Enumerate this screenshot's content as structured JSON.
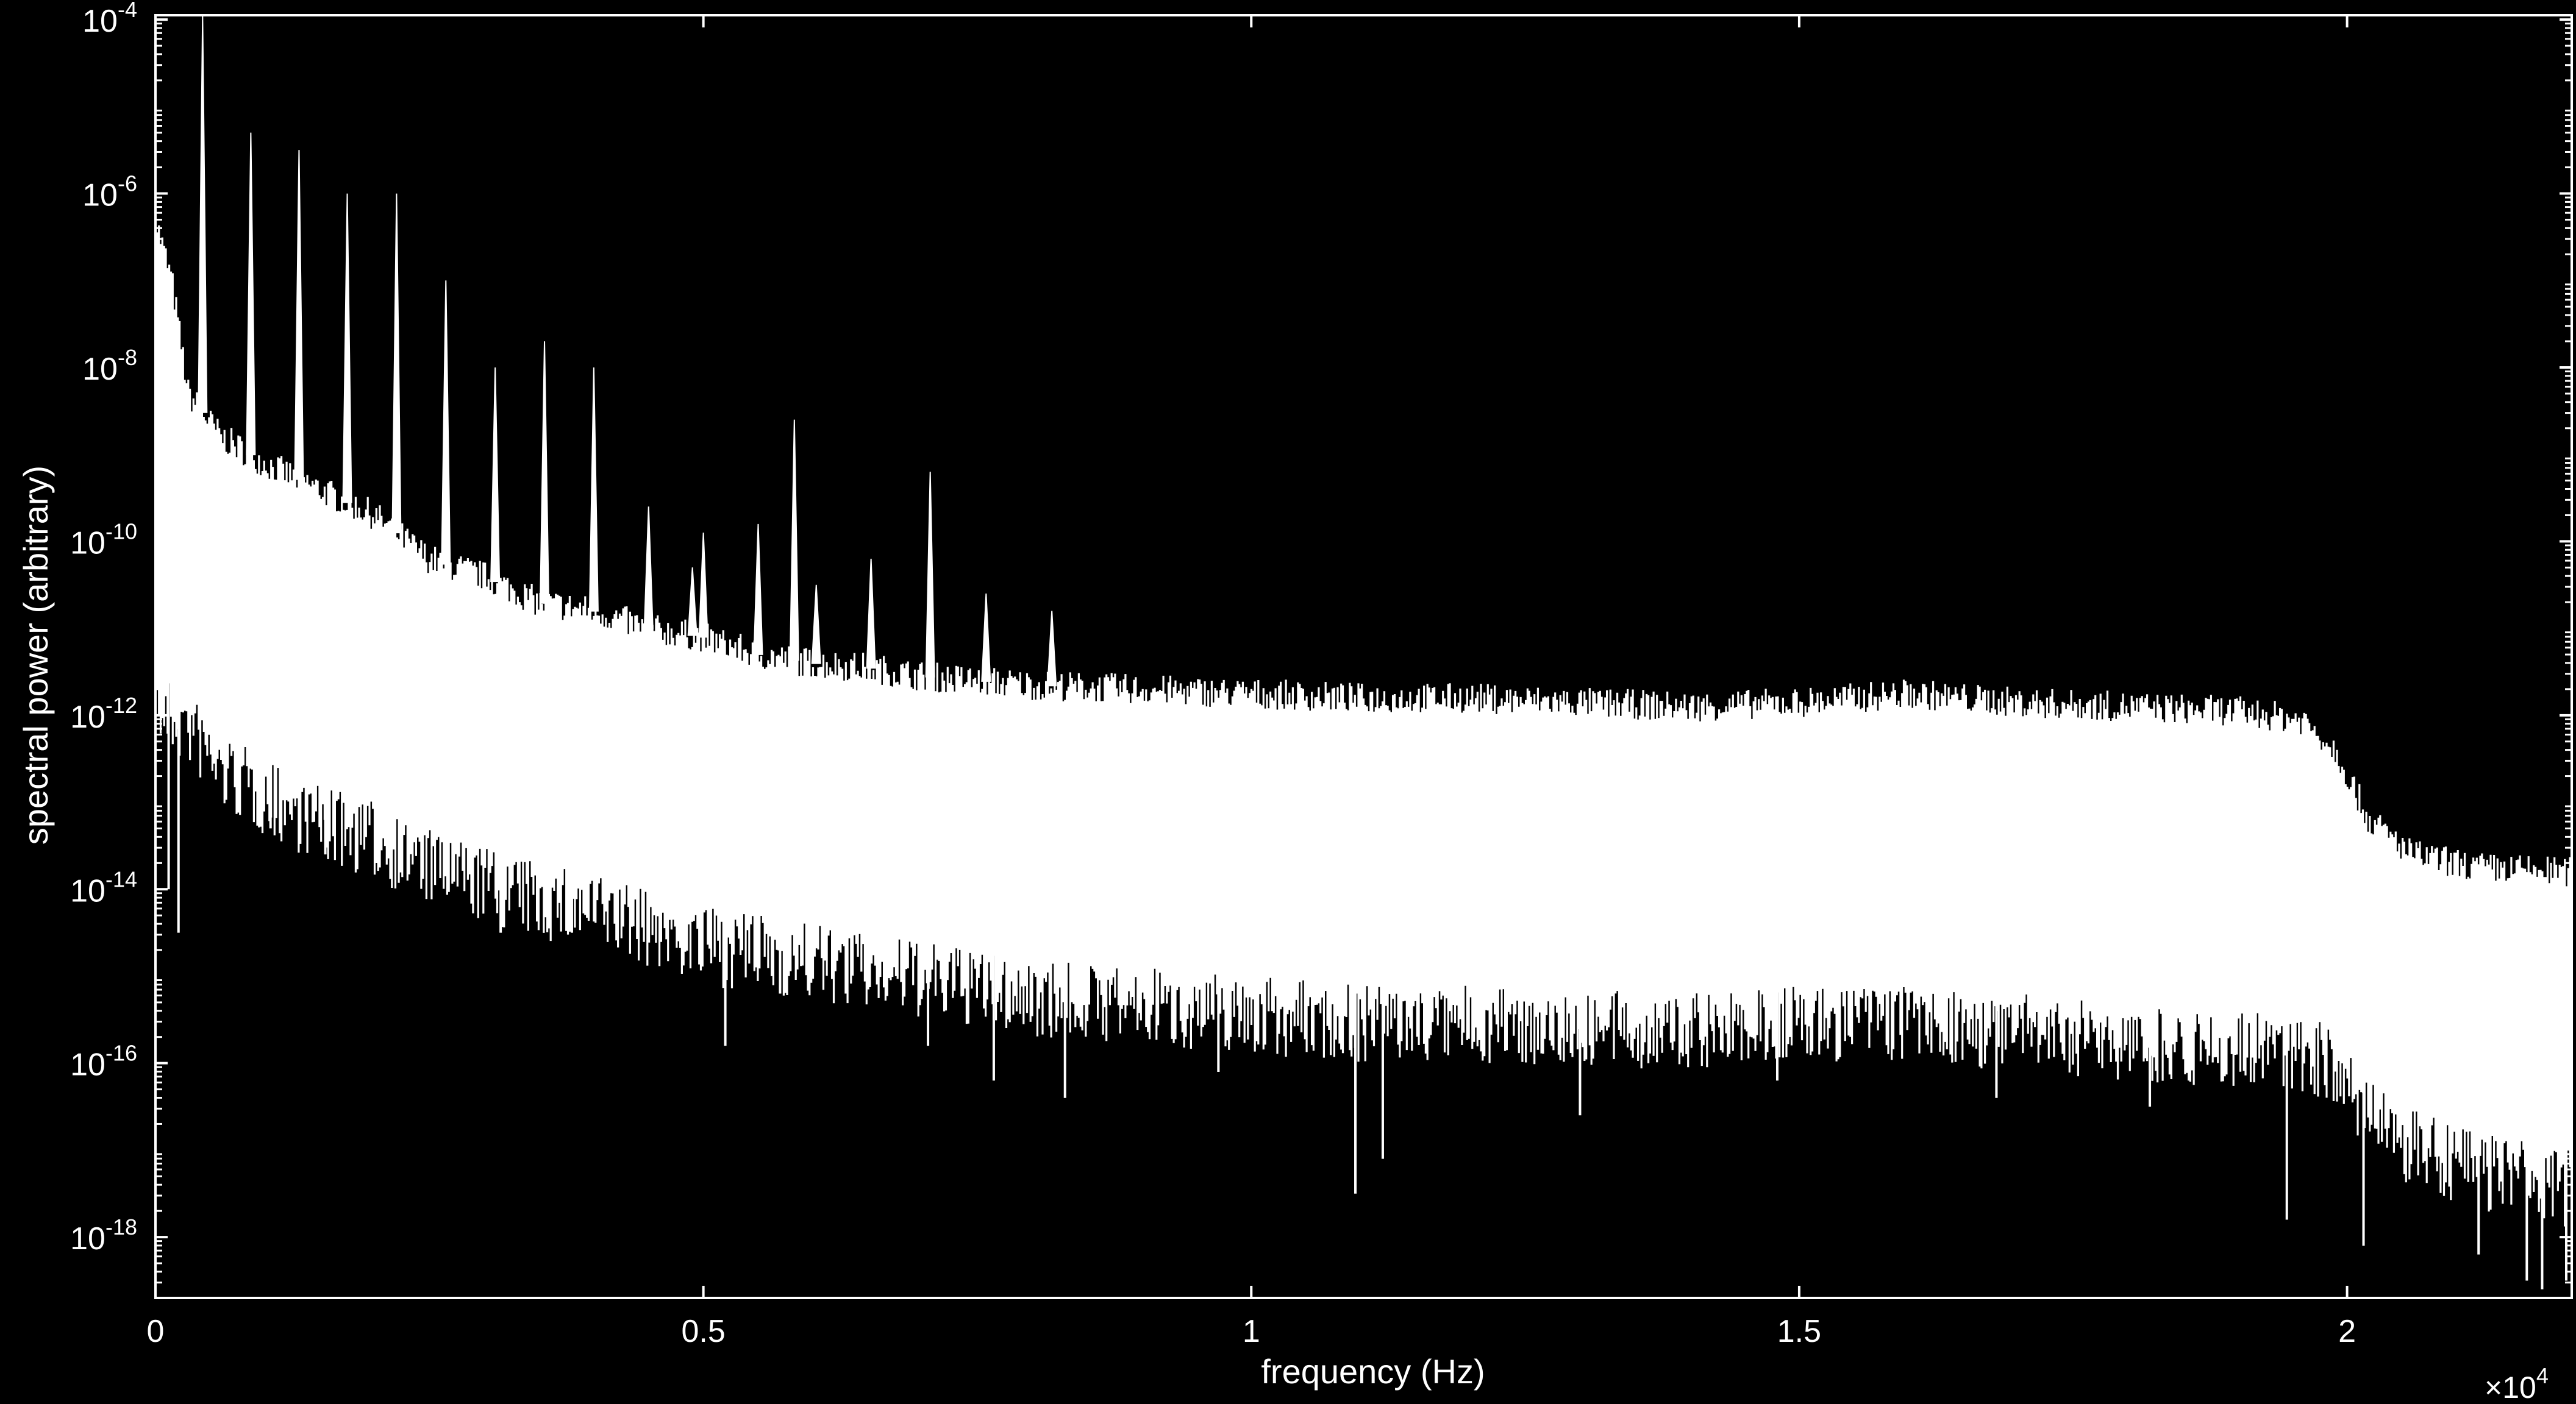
{
  "chart_data": {
    "type": "line",
    "title": "",
    "xlabel": "frequency (Hz)",
    "ylabel": "spectral power (arbitrary)",
    "x_multiplier_label": "×10",
    "x_multiplier_exp": "4",
    "xlim": [
      0,
      22050
    ],
    "ylim_log10": [
      -18.7,
      -3.95
    ],
    "y_scale": "log",
    "grid": false,
    "background_color": "#000000",
    "line_color": "#ffffff",
    "x_ticks": [
      {
        "value": 0,
        "label": "0"
      },
      {
        "value": 5000,
        "label": "0.5"
      },
      {
        "value": 10000,
        "label": "1"
      },
      {
        "value": 15000,
        "label": "1.5"
      },
      {
        "value": 20000,
        "label": "2"
      }
    ],
    "y_ticks": [
      {
        "exp": -4,
        "base": "10",
        "sup": "-4"
      },
      {
        "exp": -6,
        "base": "10",
        "sup": "-6"
      },
      {
        "exp": -8,
        "base": "10",
        "sup": "-8"
      },
      {
        "exp": -10,
        "base": "10",
        "sup": "-10"
      },
      {
        "exp": -12,
        "base": "10",
        "sup": "-12"
      },
      {
        "exp": -14,
        "base": "10",
        "sup": "-14"
      },
      {
        "exp": -16,
        "base": "10",
        "sup": "-16"
      },
      {
        "exp": -18,
        "base": "10",
        "sup": "-18"
      }
    ],
    "envelope": {
      "upper": [
        [
          0,
          -6.3
        ],
        [
          150,
          -7.0
        ],
        [
          300,
          -8.3
        ],
        [
          600,
          -8.8
        ],
        [
          1000,
          -9.1
        ],
        [
          1500,
          -9.4
        ],
        [
          2000,
          -9.7
        ],
        [
          2500,
          -10.2
        ],
        [
          3000,
          -10.4
        ],
        [
          3500,
          -10.7
        ],
        [
          4000,
          -10.8
        ],
        [
          4500,
          -11.0
        ],
        [
          5000,
          -11.1
        ],
        [
          5500,
          -11.3
        ],
        [
          6000,
          -11.4
        ],
        [
          6500,
          -11.45
        ],
        [
          7000,
          -11.55
        ],
        [
          7500,
          -11.6
        ],
        [
          8000,
          -11.65
        ],
        [
          9000,
          -11.7
        ],
        [
          10000,
          -11.75
        ],
        [
          11000,
          -11.8
        ],
        [
          12000,
          -11.8
        ],
        [
          13000,
          -11.85
        ],
        [
          14000,
          -11.9
        ],
        [
          15000,
          -11.85
        ],
        [
          16000,
          -11.75
        ],
        [
          17000,
          -11.85
        ],
        [
          18000,
          -11.9
        ],
        [
          19000,
          -11.95
        ],
        [
          19600,
          -12.05
        ],
        [
          19900,
          -12.4
        ],
        [
          20200,
          -13.2
        ],
        [
          20600,
          -13.6
        ],
        [
          21200,
          -13.75
        ],
        [
          22050,
          -13.8
        ]
      ],
      "lower": [
        [
          0,
          -11.5
        ],
        [
          300,
          -11.7
        ],
        [
          600,
          -12.2
        ],
        [
          1000,
          -12.5
        ],
        [
          1500,
          -12.8
        ],
        [
          2000,
          -13.0
        ],
        [
          2500,
          -13.3
        ],
        [
          3000,
          -13.5
        ],
        [
          3500,
          -13.7
        ],
        [
          4000,
          -13.8
        ],
        [
          4500,
          -14.0
        ],
        [
          5000,
          -14.2
        ],
        [
          6000,
          -14.4
        ],
        [
          7000,
          -14.6
        ],
        [
          8000,
          -14.8
        ],
        [
          9000,
          -14.9
        ],
        [
          10000,
          -15.0
        ],
        [
          11000,
          -15.1
        ],
        [
          12000,
          -15.1
        ],
        [
          13000,
          -15.15
        ],
        [
          14000,
          -15.2
        ],
        [
          15000,
          -15.1
        ],
        [
          16000,
          -15.1
        ],
        [
          17000,
          -15.2
        ],
        [
          18000,
          -15.3
        ],
        [
          19000,
          -15.4
        ],
        [
          19800,
          -15.5
        ],
        [
          20100,
          -16.0
        ],
        [
          20500,
          -16.5
        ],
        [
          21200,
          -16.8
        ],
        [
          22050,
          -17.0
        ]
      ]
    },
    "peaks": [
      {
        "x": 430,
        "y": -3.95
      },
      {
        "x": 870,
        "y": -5.3
      },
      {
        "x": 1310,
        "y": -5.5
      },
      {
        "x": 1750,
        "y": -6.0
      },
      {
        "x": 2200,
        "y": -6.0
      },
      {
        "x": 2650,
        "y": -7.0
      },
      {
        "x": 3100,
        "y": -8.0
      },
      {
        "x": 3550,
        "y": -7.7
      },
      {
        "x": 4000,
        "y": -8.0
      },
      {
        "x": 4500,
        "y": -9.6
      },
      {
        "x": 4900,
        "y": -10.3
      },
      {
        "x": 5000,
        "y": -9.9
      },
      {
        "x": 5500,
        "y": -9.8
      },
      {
        "x": 5830,
        "y": -8.6
      },
      {
        "x": 6030,
        "y": -10.5
      },
      {
        "x": 6530,
        "y": -10.2
      },
      {
        "x": 7070,
        "y": -9.2
      },
      {
        "x": 7580,
        "y": -10.6
      },
      {
        "x": 8180,
        "y": -10.8
      }
    ],
    "dips": [
      {
        "x": 120,
        "y": -14.0
      },
      {
        "x": 210,
        "y": -14.5
      },
      {
        "x": 1050,
        "y": -13.3
      },
      {
        "x": 1550,
        "y": -13.6
      },
      {
        "x": 2580,
        "y": -13.4
      },
      {
        "x": 3150,
        "y": -14.5
      },
      {
        "x": 3800,
        "y": -14.5
      },
      {
        "x": 4550,
        "y": -14.3
      },
      {
        "x": 5200,
        "y": -15.8
      },
      {
        "x": 5700,
        "y": -15.2
      },
      {
        "x": 6300,
        "y": -15.2
      },
      {
        "x": 7050,
        "y": -15.8
      },
      {
        "x": 7650,
        "y": -16.2
      },
      {
        "x": 8300,
        "y": -16.4
      },
      {
        "x": 9700,
        "y": -16.1
      },
      {
        "x": 10950,
        "y": -17.5
      },
      {
        "x": 11200,
        "y": -17.1
      },
      {
        "x": 13000,
        "y": -16.6
      },
      {
        "x": 14800,
        "y": -16.2
      },
      {
        "x": 16800,
        "y": -16.4
      },
      {
        "x": 18200,
        "y": -16.5
      },
      {
        "x": 19450,
        "y": -17.8
      },
      {
        "x": 20150,
        "y": -18.1
      },
      {
        "x": 21200,
        "y": -18.2
      },
      {
        "x": 21640,
        "y": -18.5
      },
      {
        "x": 21780,
        "y": -18.6
      },
      {
        "x": 22000,
        "y": -18.5
      }
    ],
    "noise_seed": 7
  }
}
